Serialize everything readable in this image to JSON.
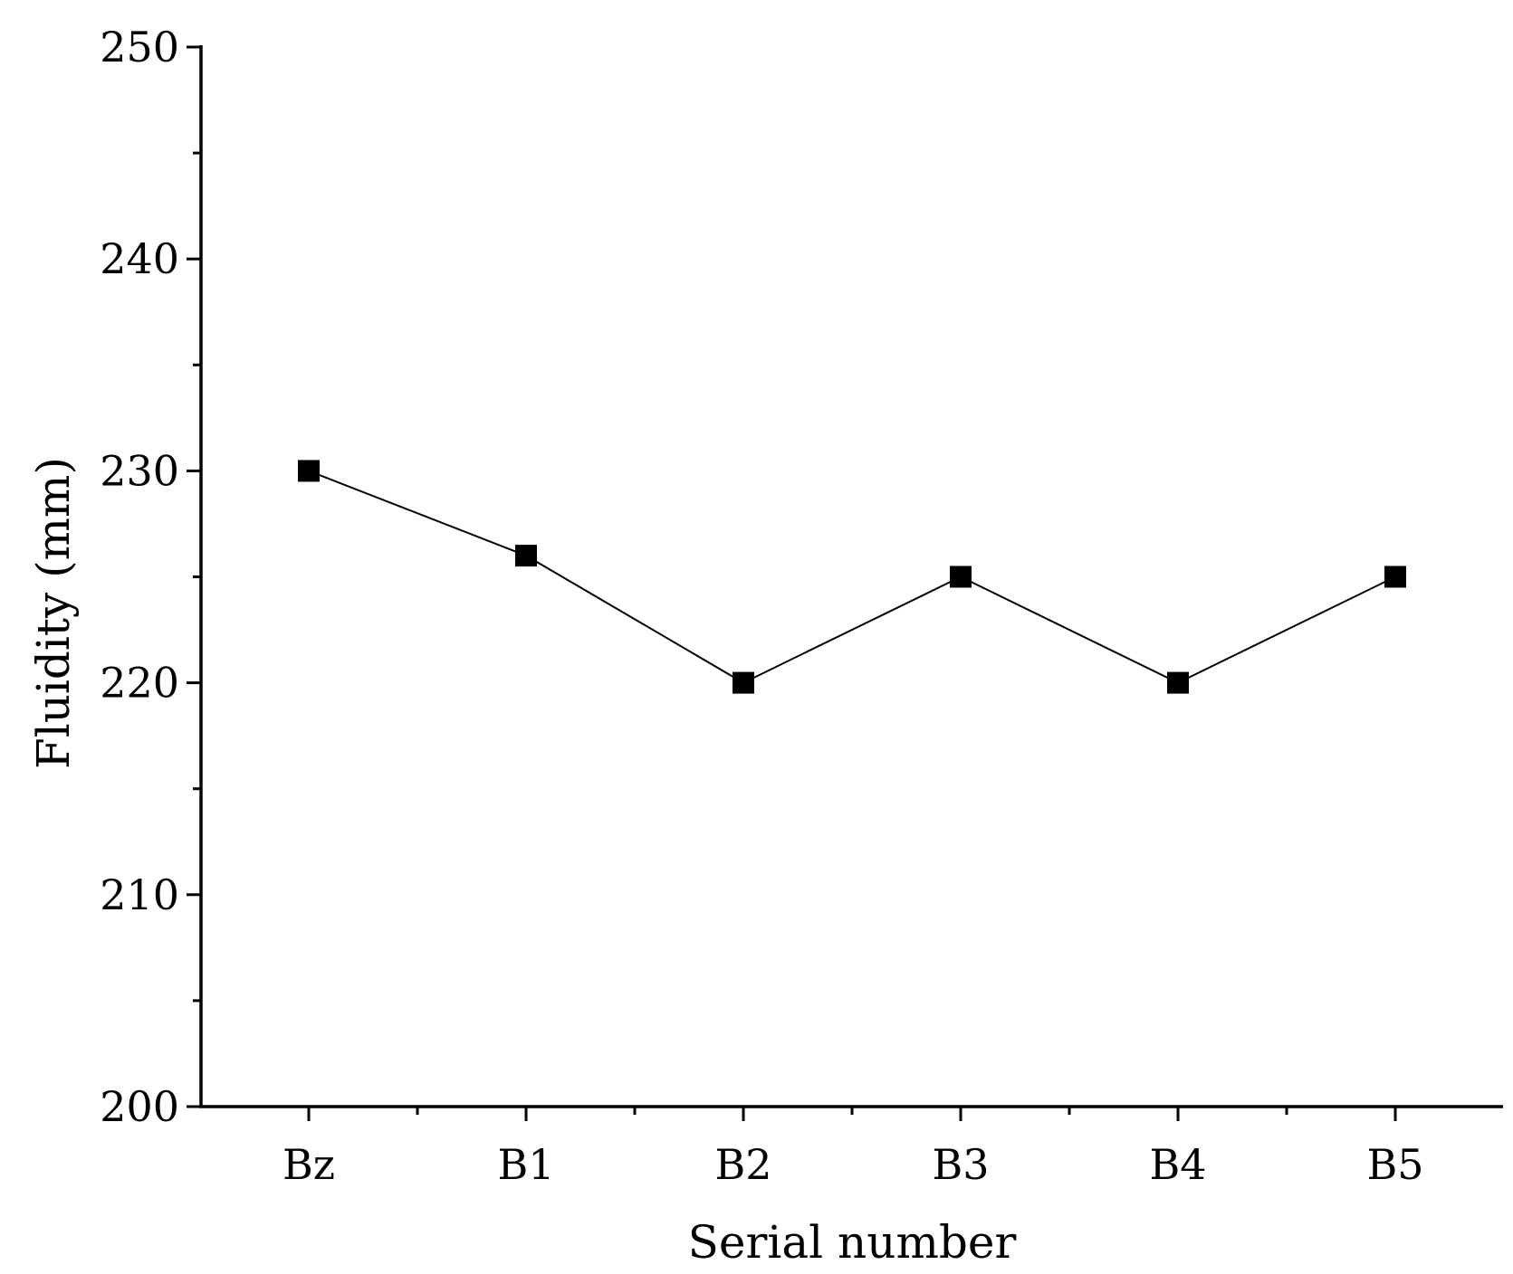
{
  "chart_data": {
    "type": "line",
    "categories": [
      "Bz",
      "B1",
      "B2",
      "B3",
      "B4",
      "B5"
    ],
    "series": [
      {
        "values": [
          230,
          226,
          220,
          225,
          220,
          225
        ]
      }
    ],
    "xlabel": "Serial number",
    "ylabel": "Fluidity (mm)",
    "ylim": [
      200,
      250
    ],
    "yticks": [
      "200",
      "210",
      "220",
      "230",
      "240",
      "250"
    ],
    "grid": false,
    "marker": "square",
    "color": "#000000"
  }
}
